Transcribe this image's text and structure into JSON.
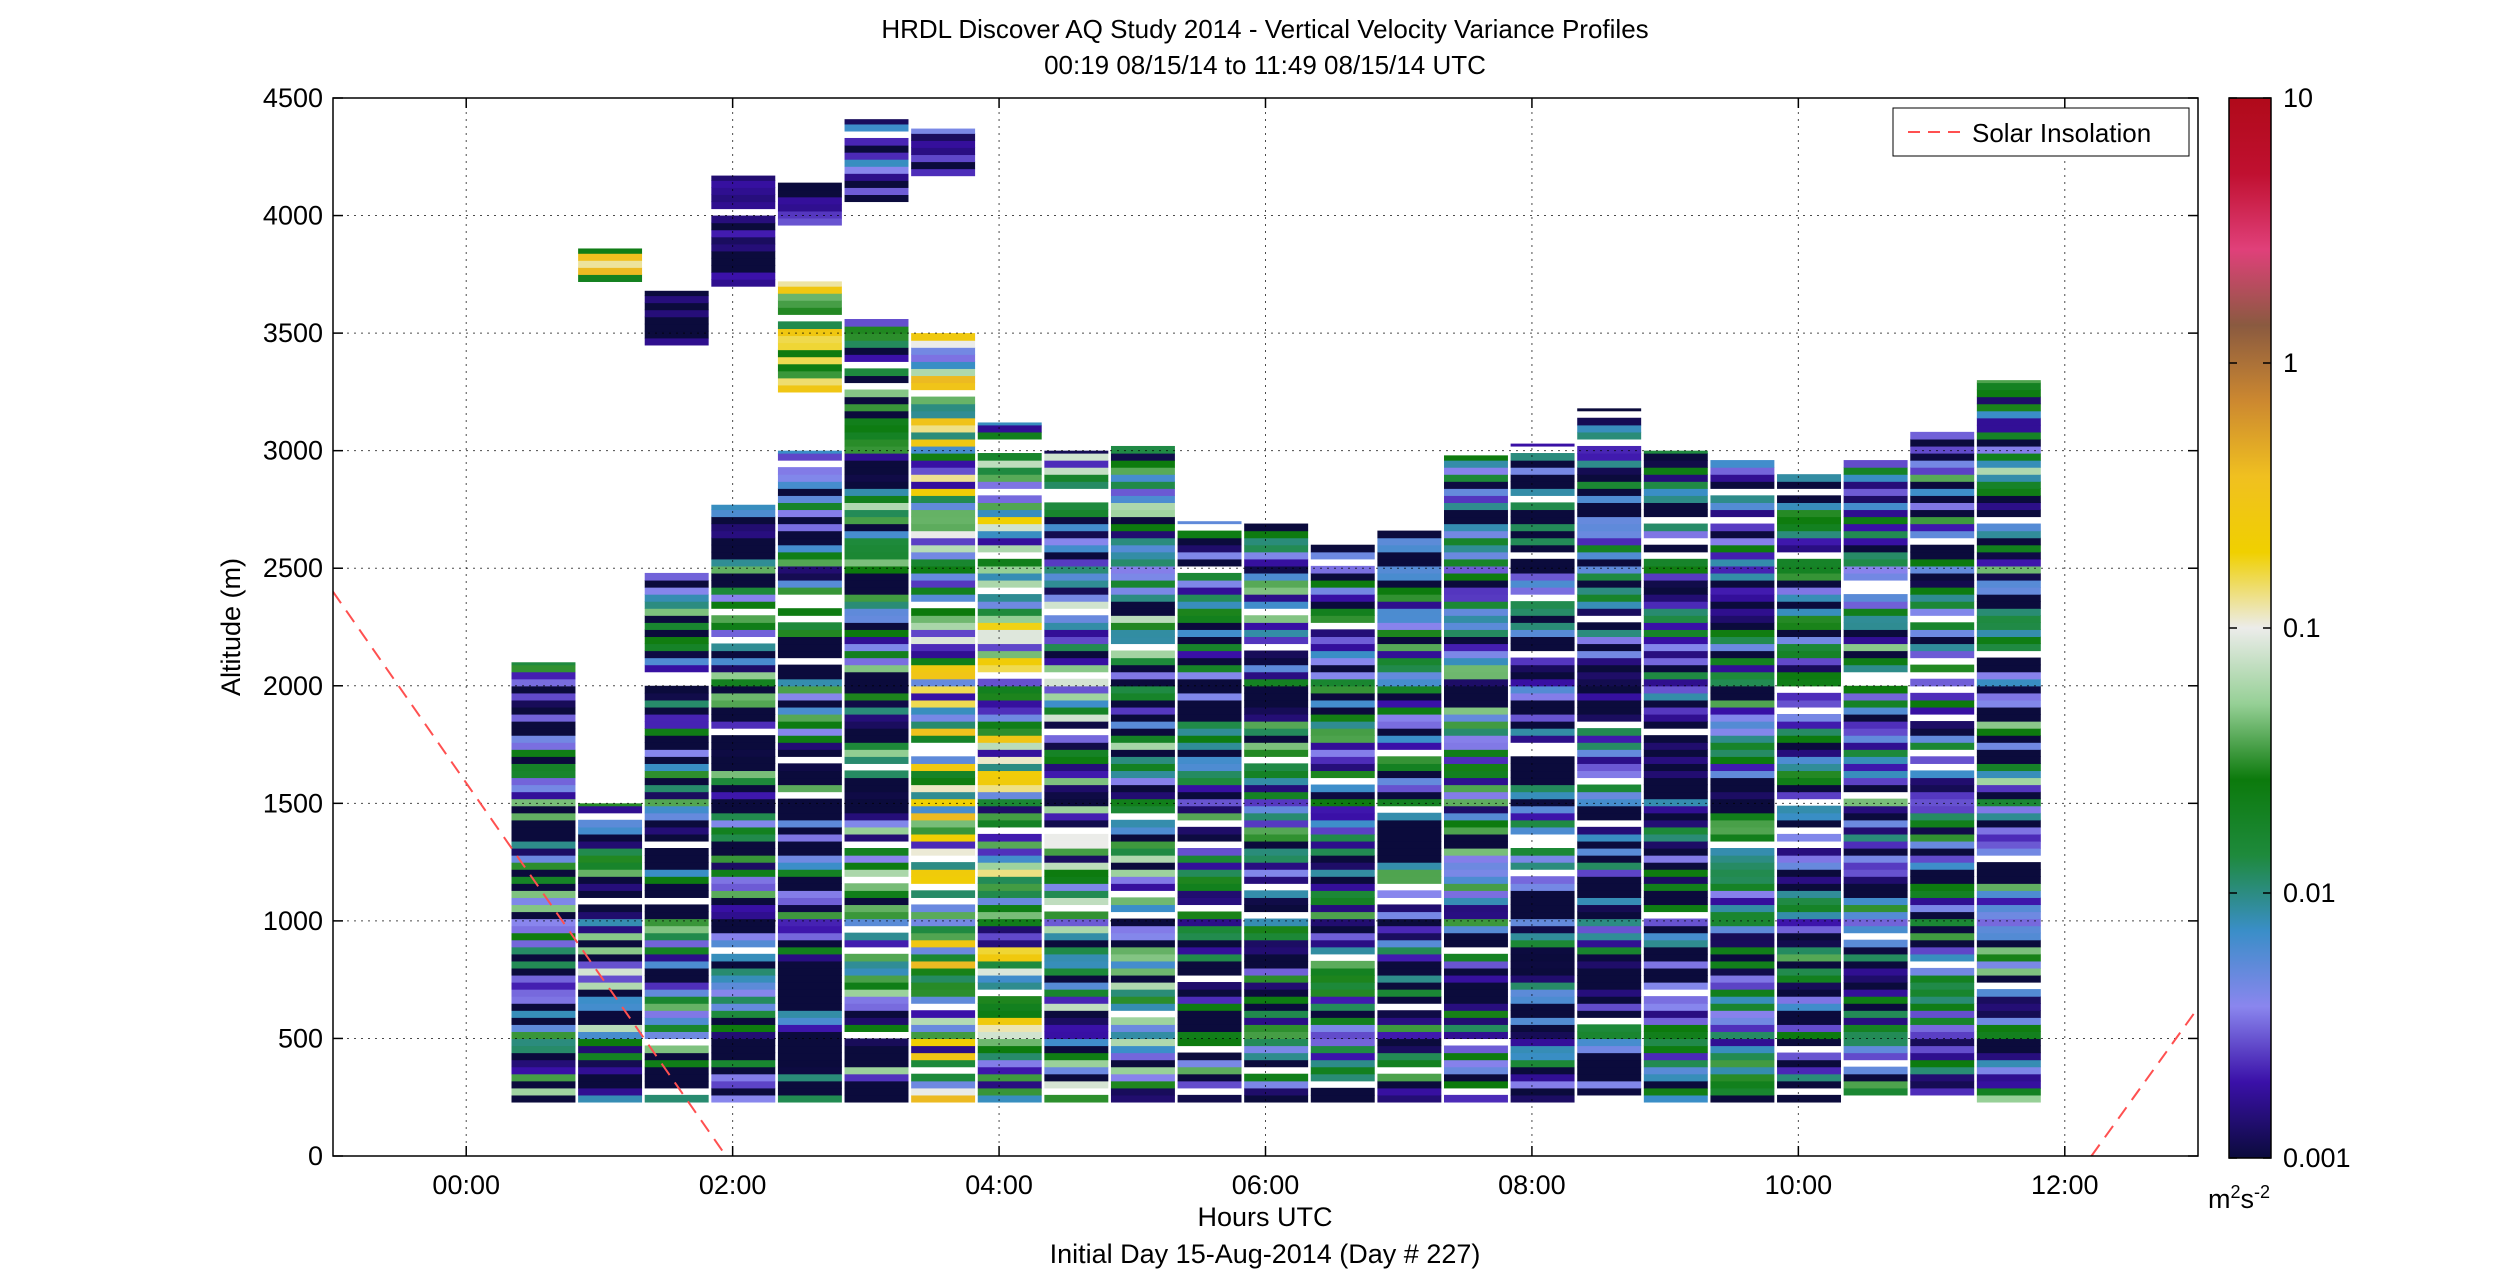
{
  "chart_data": {
    "type": "heatmap",
    "title": "HRDL Discover AQ Study 2014 - Vertical Velocity Variance Profiles",
    "subtitle": "00:19 08/15/14 to 11:49 08/15/14  UTC",
    "xlabel": "Hours UTC",
    "xlabel2": "Initial Day 15-Aug-2014 (Day # 227)",
    "ylabel": "Altitude (m)",
    "x_unit": "hours UTC",
    "xlim": [
      -1.0,
      13.0
    ],
    "ylim": [
      0,
      4500
    ],
    "x_ticks": [
      0,
      2,
      4,
      6,
      8,
      10,
      12
    ],
    "x_tick_labels": [
      "00:00",
      "02:00",
      "04:00",
      "06:00",
      "08:00",
      "10:00",
      "12:00"
    ],
    "y_ticks": [
      0,
      500,
      1000,
      1500,
      2000,
      2500,
      3000,
      3500,
      4000,
      4500
    ],
    "y_tick_labels": [
      "0",
      "500",
      "1000",
      "1500",
      "2000",
      "2500",
      "3000",
      "3500",
      "4000",
      "4500"
    ],
    "grid": true,
    "colorbar": {
      "scale": "log",
      "range": [
        0.001,
        10
      ],
      "ticks": [
        0.001,
        0.01,
        0.1,
        1,
        10
      ],
      "tick_labels": [
        "0.001",
        "0.01",
        "0.1",
        "1",
        "10"
      ],
      "unit_base": "m",
      "unit_sup1": "2",
      "unit_mid": "s",
      "unit_sup2": "-2",
      "colors": [
        "#0b0b3c",
        "#3a10a8",
        "#8a86ee",
        "#3a8ec8",
        "#1e8a3c",
        "#0c7a0c",
        "#96d096",
        "#ececea",
        "#f0d000",
        "#f0c020",
        "#cc8830",
        "#8a5a40",
        "#e0407a",
        "#c01030",
        "#b00a1a"
      ]
    },
    "legend": {
      "position": "top-right",
      "entries": [
        {
          "name": "Solar Insolation",
          "style": "dashed",
          "color": "#ff5050"
        }
      ]
    },
    "solar_insolation_segments": [
      {
        "x": [
          -1.0,
          1.95
        ],
        "y": [
          2400,
          0
        ]
      },
      {
        "x": [
          12.2,
          13.0
        ],
        "y": [
          0,
          630
        ]
      }
    ],
    "profiles": [
      {
        "time": 0.58,
        "bottom": 230,
        "top": 2100,
        "typical": 0.003,
        "spread": 1.3
      },
      {
        "time": 1.08,
        "bottom": 230,
        "top": 1500,
        "typical": 0.004,
        "spread": 1.4
      },
      {
        "time": 1.08,
        "bottom": 3720,
        "top": 3860,
        "typical": 0.1,
        "spread": 0.8
      },
      {
        "time": 1.58,
        "bottom": 230,
        "top": 2480,
        "typical": 0.003,
        "spread": 1.2
      },
      {
        "time": 1.58,
        "bottom": 3450,
        "top": 3680,
        "typical": 0.0011,
        "spread": 0.2
      },
      {
        "time": 2.08,
        "bottom": 230,
        "top": 2770,
        "typical": 0.003,
        "spread": 1.3
      },
      {
        "time": 2.08,
        "bottom": 3700,
        "top": 4170,
        "typical": 0.0012,
        "spread": 0.3
      },
      {
        "time": 2.58,
        "bottom": 230,
        "top": 3000,
        "typical": 0.002,
        "spread": 1.3
      },
      {
        "time": 2.58,
        "bottom": 3250,
        "top": 3720,
        "typical": 0.08,
        "spread": 0.9
      },
      {
        "time": 2.58,
        "bottom": 3960,
        "top": 4140,
        "typical": 0.0015,
        "spread": 0.3
      },
      {
        "time": 3.08,
        "bottom": 230,
        "top": 3580,
        "typical": 0.004,
        "spread": 1.2
      },
      {
        "time": 3.08,
        "bottom": 4060,
        "top": 4410,
        "typical": 0.002,
        "spread": 0.6
      },
      {
        "time": 3.58,
        "bottom": 230,
        "top": 3500,
        "typical": 0.03,
        "spread": 1.3
      },
      {
        "time": 3.58,
        "bottom": 4170,
        "top": 4370,
        "typical": 0.002,
        "spread": 0.5
      },
      {
        "time": 4.08,
        "bottom": 230,
        "top": 3120,
        "typical": 0.02,
        "spread": 1.2
      },
      {
        "time": 4.58,
        "bottom": 230,
        "top": 3000,
        "typical": 0.008,
        "spread": 1.1
      },
      {
        "time": 5.08,
        "bottom": 230,
        "top": 3020,
        "typical": 0.006,
        "spread": 1.1
      },
      {
        "time": 5.58,
        "bottom": 230,
        "top": 2700,
        "typical": 0.004,
        "spread": 1.0
      },
      {
        "time": 6.08,
        "bottom": 230,
        "top": 2700,
        "typical": 0.005,
        "spread": 1.0
      },
      {
        "time": 6.58,
        "bottom": 230,
        "top": 2600,
        "typical": 0.004,
        "spread": 1.0
      },
      {
        "time": 7.08,
        "bottom": 230,
        "top": 2660,
        "typical": 0.004,
        "spread": 1.0
      },
      {
        "time": 7.58,
        "bottom": 230,
        "top": 2980,
        "typical": 0.004,
        "spread": 1.1
      },
      {
        "time": 8.08,
        "bottom": 230,
        "top": 3030,
        "typical": 0.002,
        "spread": 0.9
      },
      {
        "time": 8.58,
        "bottom": 230,
        "top": 3180,
        "typical": 0.0025,
        "spread": 0.9
      },
      {
        "time": 9.08,
        "bottom": 230,
        "top": 3000,
        "typical": 0.003,
        "spread": 1.0
      },
      {
        "time": 9.58,
        "bottom": 230,
        "top": 2980,
        "typical": 0.004,
        "spread": 1.0
      },
      {
        "time": 10.08,
        "bottom": 230,
        "top": 2900,
        "typical": 0.004,
        "spread": 1.0
      },
      {
        "time": 10.58,
        "bottom": 230,
        "top": 2980,
        "typical": 0.005,
        "spread": 1.0
      },
      {
        "time": 11.08,
        "bottom": 230,
        "top": 3080,
        "typical": 0.004,
        "spread": 1.0
      },
      {
        "time": 11.58,
        "bottom": 230,
        "top": 3300,
        "typical": 0.005,
        "spread": 1.1
      }
    ]
  }
}
